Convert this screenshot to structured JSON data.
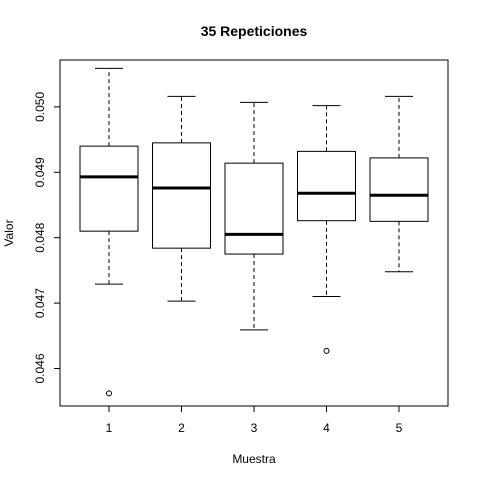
{
  "chart_data": {
    "type": "boxplot",
    "title": "35 Repeticiones",
    "xlabel": "Muestra",
    "ylabel": "Valor",
    "categories": [
      "1",
      "2",
      "3",
      "4",
      "5"
    ],
    "ylim": [
      0.04545,
      0.05055
    ],
    "yticks": [
      0.046,
      0.047,
      0.048,
      0.049,
      0.05
    ],
    "yticklabels": [
      "0.046",
      "0.047",
      "0.048",
      "0.049",
      "0.050"
    ],
    "boxes": [
      {
        "label": "1",
        "whisker_low": 0.04729,
        "q1": 0.0481,
        "median": 0.04893,
        "q3": 0.0494,
        "whisker_high": 0.05059,
        "outliers": [
          0.04562
        ]
      },
      {
        "label": "2",
        "whisker_low": 0.04703,
        "q1": 0.04784,
        "median": 0.04876,
        "q3": 0.04945,
        "whisker_high": 0.05016,
        "outliers": []
      },
      {
        "label": "3",
        "whisker_low": 0.04659,
        "q1": 0.04775,
        "median": 0.04805,
        "q3": 0.04914,
        "whisker_high": 0.05007,
        "outliers": []
      },
      {
        "label": "4",
        "whisker_low": 0.0471,
        "q1": 0.04826,
        "median": 0.04868,
        "q3": 0.04932,
        "whisker_high": 0.05002,
        "outliers": [
          0.04627
        ]
      },
      {
        "label": "5",
        "whisker_low": 0.04748,
        "q1": 0.04825,
        "median": 0.04865,
        "q3": 0.04922,
        "whisker_high": 0.05016,
        "outliers": []
      }
    ]
  }
}
